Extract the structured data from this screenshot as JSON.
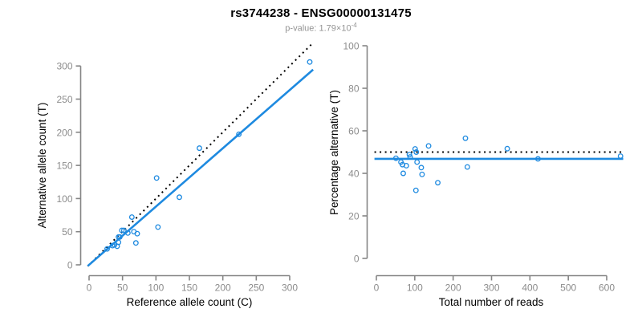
{
  "header": {
    "title": "rs3744238 - ENSG00000131475",
    "subtitle_base": "p-value: 1.79×10",
    "subtitle_exponent": "-4"
  },
  "colors": {
    "accent_blue": "#1E8AE0",
    "identity_black": "#000000",
    "axis_gray": "#858585",
    "tick_label_gray": "#8c8c8c",
    "subtitle_gray": "#939393"
  },
  "chart_data": [
    {
      "type": "scatter",
      "xlabel": "Reference allele count (C)",
      "ylabel": "Alternative allele count (T)",
      "xlim": [
        0,
        335
      ],
      "ylim": [
        0,
        315
      ],
      "xticks": [
        0,
        50,
        100,
        150,
        200,
        250,
        300
      ],
      "yticks": [
        0,
        50,
        100,
        150,
        200,
        250,
        300
      ],
      "grid": false,
      "legend": "none",
      "points": [
        [
          27,
          24
        ],
        [
          35,
          29
        ],
        [
          38,
          30
        ],
        [
          42,
          28
        ],
        [
          44,
          34
        ],
        [
          44,
          42
        ],
        [
          46,
          42
        ],
        [
          49,
          52
        ],
        [
          52,
          52
        ],
        [
          58,
          48
        ],
        [
          64,
          72
        ],
        [
          67,
          50
        ],
        [
          72,
          47
        ],
        [
          70,
          33
        ],
        [
          101,
          131
        ],
        [
          103,
          57
        ],
        [
          135,
          102
        ],
        [
          165,
          176
        ],
        [
          224,
          197
        ],
        [
          330,
          306
        ]
      ],
      "line_x_range": [
        -2,
        335
      ],
      "lines": [
        {
          "name": "identity-line",
          "slope": 1,
          "intercept": 0,
          "style": "dotted",
          "color": "black"
        },
        {
          "name": "regression-line",
          "slope": 0.879,
          "intercept": 0,
          "style": "solid",
          "color": "blue"
        }
      ]
    },
    {
      "type": "scatter",
      "xlabel": "Total number of reads",
      "ylabel": "Percentage alternative (T)",
      "xlim": [
        0,
        650
      ],
      "ylim": [
        0,
        100
      ],
      "xticks": [
        0,
        100,
        200,
        300,
        400,
        500,
        600
      ],
      "yticks": [
        0,
        20,
        40,
        60,
        80,
        100
      ],
      "grid": false,
      "legend": "none",
      "points": [
        [
          51,
          47.1
        ],
        [
          64,
          45.3
        ],
        [
          68,
          44.1
        ],
        [
          70,
          40.0
        ],
        [
          78,
          43.6
        ],
        [
          86,
          48.8
        ],
        [
          88,
          47.7
        ],
        [
          101,
          51.5
        ],
        [
          104,
          50.0
        ],
        [
          106,
          45.3
        ],
        [
          136,
          52.9
        ],
        [
          117,
          42.7
        ],
        [
          119,
          39.5
        ],
        [
          103,
          32.0
        ],
        [
          232,
          56.5
        ],
        [
          160,
          35.6
        ],
        [
          237,
          43.0
        ],
        [
          341,
          51.6
        ],
        [
          421,
          46.8
        ],
        [
          636,
          48.1
        ]
      ],
      "line_x_range": [
        -5,
        643
      ],
      "lines": [
        {
          "name": "reference-50pct-line",
          "hline": 50,
          "style": "dotted",
          "color": "black"
        },
        {
          "name": "mean-percentage-line",
          "hline": 46.8,
          "style": "solid",
          "color": "blue"
        }
      ]
    }
  ]
}
